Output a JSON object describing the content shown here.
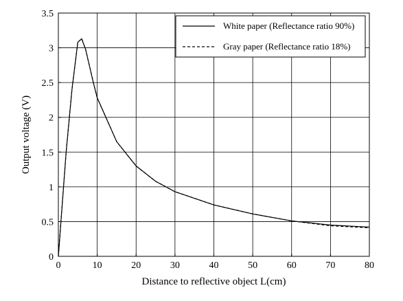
{
  "chart_data": {
    "type": "line",
    "xlabel": "Distance to reflective object L(cm)",
    "ylabel": "Output voltage (V)",
    "xlim": [
      0,
      80
    ],
    "ylim": [
      0,
      3.5
    ],
    "x_ticks": [
      0,
      10,
      20,
      30,
      40,
      50,
      60,
      70,
      80
    ],
    "y_ticks": [
      0,
      0.5,
      1,
      1.5,
      2,
      2.5,
      3,
      3.5
    ],
    "x_tick_labels": [
      "0",
      "10",
      "20",
      "30",
      "40",
      "50",
      "60",
      "70",
      "80"
    ],
    "y_tick_labels": [
      "0",
      "0.5",
      "1",
      "1.5",
      "2",
      "2.5",
      "3",
      "3.5"
    ],
    "grid": true,
    "legend_position": "top-right",
    "series": [
      {
        "name": "White paper (Reflectance ratio 90%)",
        "style": "solid",
        "color": "#000000",
        "x": [
          0,
          2,
          3.5,
          5,
          6,
          7,
          9,
          10,
          15,
          20,
          25,
          30,
          40,
          50,
          60,
          70,
          80
        ],
        "y": [
          0,
          1.5,
          2.4,
          3.08,
          3.13,
          2.98,
          2.5,
          2.28,
          1.65,
          1.3,
          1.08,
          0.93,
          0.74,
          0.61,
          0.51,
          0.45,
          0.42
        ]
      },
      {
        "name": "Gray paper (Reflectance ratio 18%)",
        "style": "dashed",
        "color": "#000000",
        "x": [
          0,
          2,
          3.5,
          5,
          6,
          7,
          9,
          10,
          15,
          20,
          25,
          30,
          40,
          50,
          60,
          70,
          80
        ],
        "y": [
          0,
          1.5,
          2.4,
          3.08,
          3.13,
          2.98,
          2.5,
          2.28,
          1.65,
          1.3,
          1.08,
          0.93,
          0.74,
          0.61,
          0.51,
          0.44,
          0.41
        ]
      }
    ]
  }
}
